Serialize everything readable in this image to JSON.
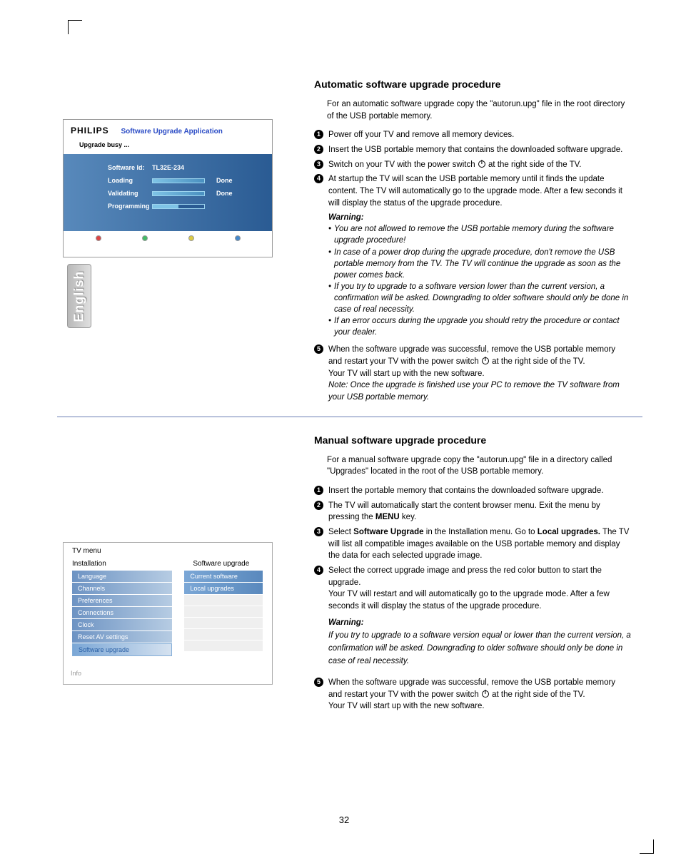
{
  "page_number": "32",
  "lang_tab": "English",
  "colors": {
    "rule": "#6b7db3",
    "menu_blue_start": "#6d93c3",
    "menu_blue_end": "#b6cce3"
  },
  "upgrade_app": {
    "brand": "PHILIPS",
    "app_title": "Software Upgrade Application",
    "busy": "Upgrade busy ...",
    "software_id_label": "Software Id:",
    "software_id_value": "TL32E-234",
    "loading_label": "Loading",
    "validating_label": "Validating",
    "programming_label": "Programming",
    "done": "Done",
    "bar_color_start": "#7fc4e6",
    "bar_color_end": "#4a90c0",
    "dot_colors": [
      "#d44444",
      "#44bb66",
      "#ddcc44",
      "#4488cc"
    ]
  },
  "tv_menu": {
    "title": "TV menu",
    "col_left": "Installation",
    "col_right": "Software upgrade",
    "left_items": [
      "Language",
      "Channels",
      "Preferences",
      "Connections",
      "Clock",
      "Reset AV settings",
      "Software upgrade"
    ],
    "selected_left": "Software upgrade",
    "right_items": [
      "Current software",
      "Local upgrades"
    ],
    "info": "Info"
  },
  "section1": {
    "heading": "Automatic software upgrade procedure",
    "intro": "For an automatic software upgrade copy the \"autorun.upg\" file in the root directory of the USB portable memory.",
    "steps": [
      "Power off your TV and remove all memory devices.",
      "Insert the USB portable memory that contains the downloaded software upgrade.",
      "Switch on your TV with the power switch {P} at the right side of the TV.",
      "At startup the TV will scan the USB portable memory until it finds the update content. The TV will automatically go to the upgrade mode. After a few seconds it will display the status of the upgrade procedure."
    ],
    "warning_title": "Warning:",
    "warnings": [
      "You are not allowed to remove the USB portable memory during the software upgrade procedure!",
      "In case of a power drop during the upgrade procedure, don't remove the USB portable memory from the TV. The TV will continue the upgrade as soon as the power comes back.",
      "If you try to upgrade to a software version lower than the current version, a confirmation will be asked. Downgrading to older software should only be done in case of real necessity.",
      "If an error occurs during the upgrade you should retry the procedure or contact your dealer."
    ],
    "step5a": "When the software upgrade was successful, remove the USB portable memory and restart your TV with the power switch {P} at the right side of the TV.",
    "step5b": "Your TV will start up with the new software.",
    "note": "Note: Once the upgrade is finished use your PC to remove the TV software from your USB portable memory."
  },
  "section2": {
    "heading": "Manual software upgrade procedure",
    "intro": "For a manual software upgrade copy the \"autorun.upg\" file in a directory called \"Upgrades\" located in the root of the USB portable memory.",
    "steps": [
      "Insert the portable memory that contains the downloaded software upgrade.",
      "The TV will automatically start the content browser menu. Exit the menu by pressing the {B:MENU} key.",
      "Select {B:Software Upgrade} in the Installation menu. Go to {B:Local upgrades.} The TV will list all compatible images available on the USB portable memory and display the data for each selected upgrade image.",
      "Select the correct upgrade image and press the red color button to start the upgrade.\nYour TV will restart and will automatically go to the upgrade mode. After a few seconds it will display the status of the upgrade procedure."
    ],
    "warning_title": "Warning:",
    "warning_text": "If you try to upgrade to a software version equal or lower than the current version, a confirmation will be asked. Downgrading to older software should only be done in case of real necessity.",
    "step5a": "When the software upgrade was successful, remove the USB portable memory and restart your TV with the power switch {P} at the right side of the TV.",
    "step5b": "Your TV will start up with the new software."
  }
}
